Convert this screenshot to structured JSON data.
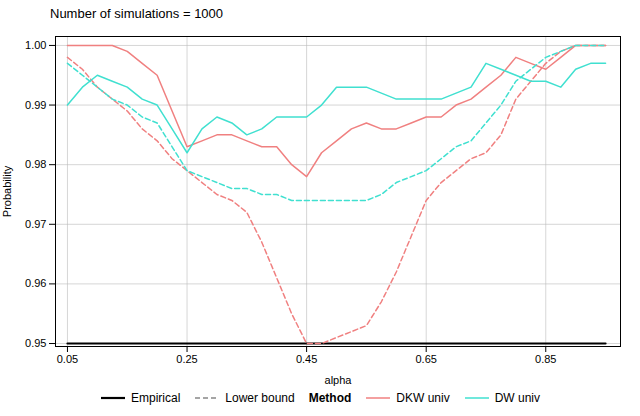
{
  "chart_data": {
    "type": "line",
    "title": "Number of simulations = 1000",
    "x_label": "alpha",
    "y_label": "Probability",
    "x": [
      0.05,
      0.075,
      0.1,
      0.125,
      0.15,
      0.175,
      0.2,
      0.225,
      0.25,
      0.275,
      0.3,
      0.325,
      0.35,
      0.375,
      0.4,
      0.425,
      0.45,
      0.475,
      0.5,
      0.525,
      0.55,
      0.575,
      0.6,
      0.625,
      0.65,
      0.675,
      0.7,
      0.725,
      0.75,
      0.775,
      0.8,
      0.825,
      0.85,
      0.875,
      0.9,
      0.925,
      0.95
    ],
    "series": [
      {
        "name": "Empirical",
        "color": "#000000",
        "line_style": "solid",
        "values": [
          0.95,
          0.95,
          0.95,
          0.95,
          0.95,
          0.95,
          0.95,
          0.95,
          0.95,
          0.95,
          0.95,
          0.95,
          0.95,
          0.95,
          0.95,
          0.95,
          0.95,
          0.95,
          0.95,
          0.95,
          0.95,
          0.95,
          0.95,
          0.95,
          0.95,
          0.95,
          0.95,
          0.95,
          0.95,
          0.95,
          0.95,
          0.95,
          0.95,
          0.95,
          0.95,
          0.95,
          0.95
        ]
      },
      {
        "name": "DKW univ",
        "color": "#F08080",
        "line_style": "solid",
        "values": [
          1.0,
          1.0,
          1.0,
          1.0,
          0.999,
          0.997,
          0.995,
          0.989,
          0.983,
          0.984,
          0.985,
          0.985,
          0.984,
          0.983,
          0.983,
          0.98,
          0.978,
          0.982,
          0.984,
          0.986,
          0.987,
          0.986,
          0.986,
          0.987,
          0.988,
          0.988,
          0.99,
          0.991,
          0.993,
          0.995,
          0.998,
          0.997,
          0.996,
          0.998,
          1.0,
          1.0,
          1.0
        ]
      },
      {
        "name": "Lower bound",
        "color": "#F08080",
        "line_style": "dashed",
        "values": [
          0.998,
          0.996,
          0.993,
          0.991,
          0.989,
          0.986,
          0.984,
          0.981,
          0.979,
          0.977,
          0.975,
          0.974,
          0.972,
          0.967,
          0.961,
          0.955,
          0.95,
          0.95,
          0.951,
          0.952,
          0.953,
          0.957,
          0.962,
          0.968,
          0.974,
          0.977,
          0.979,
          0.981,
          0.982,
          0.985,
          0.991,
          0.994,
          0.997,
          0.999,
          1.0,
          1.0,
          1.0
        ]
      },
      {
        "name": "DW univ",
        "color": "#40E0D0",
        "line_style": "solid",
        "values": [
          0.99,
          0.993,
          0.995,
          0.994,
          0.993,
          0.991,
          0.99,
          0.986,
          0.982,
          0.986,
          0.988,
          0.987,
          0.985,
          0.986,
          0.988,
          0.988,
          0.988,
          0.99,
          0.993,
          0.993,
          0.993,
          0.992,
          0.991,
          0.991,
          0.991,
          0.991,
          0.992,
          0.993,
          0.997,
          0.996,
          0.995,
          0.994,
          0.994,
          0.993,
          0.996,
          0.997,
          0.997
        ]
      },
      {
        "name": "Lower bound",
        "color": "#40E0D0",
        "line_style": "dashed",
        "values": [
          0.997,
          0.995,
          0.993,
          0.991,
          0.99,
          0.988,
          0.987,
          0.983,
          0.979,
          0.978,
          0.977,
          0.976,
          0.976,
          0.975,
          0.975,
          0.974,
          0.974,
          0.974,
          0.974,
          0.974,
          0.974,
          0.975,
          0.977,
          0.978,
          0.979,
          0.981,
          0.983,
          0.984,
          0.987,
          0.99,
          0.994,
          0.996,
          0.998,
          0.999,
          1.0,
          1.0,
          1.0
        ]
      }
    ],
    "xlim": [
      0.03,
      0.975
    ],
    "xticks": [
      0.05,
      0.25,
      0.45,
      0.65,
      0.85
    ],
    "ylim": [
      0.9495,
      1.0015
    ],
    "yticks": [
      0.95,
      0.96,
      0.97,
      0.98,
      0.99,
      {
        "value": 1.0,
        "label": "1.00"
      }
    ],
    "grid": true,
    "legend": "bottom",
    "legend_title": "Method"
  }
}
